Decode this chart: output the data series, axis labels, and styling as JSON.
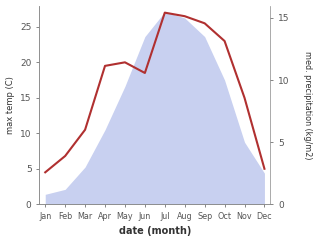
{
  "months": [
    "Jan",
    "Feb",
    "Mar",
    "Apr",
    "May",
    "Jun",
    "Jul",
    "Aug",
    "Sep",
    "Oct",
    "Nov",
    "Dec"
  ],
  "temp": [
    4.5,
    6.8,
    10.5,
    19.5,
    20.0,
    18.5,
    27.0,
    26.5,
    25.5,
    23.0,
    15.0,
    5.0
  ],
  "precip": [
    0.8,
    1.2,
    3.0,
    6.0,
    9.5,
    13.5,
    15.5,
    15.0,
    13.5,
    10.0,
    5.0,
    2.5
  ],
  "temp_color": "#b03030",
  "precip_fill_color": "#c8d0f0",
  "left_ylabel": "max temp (C)",
  "right_ylabel": "med. precipitation (kg/m2)",
  "xlabel": "date (month)",
  "ylim_left": [
    0,
    28
  ],
  "ylim_right": [
    0,
    16.0
  ],
  "precip_scale_factor": 1.75,
  "bg_color": "#ffffff"
}
